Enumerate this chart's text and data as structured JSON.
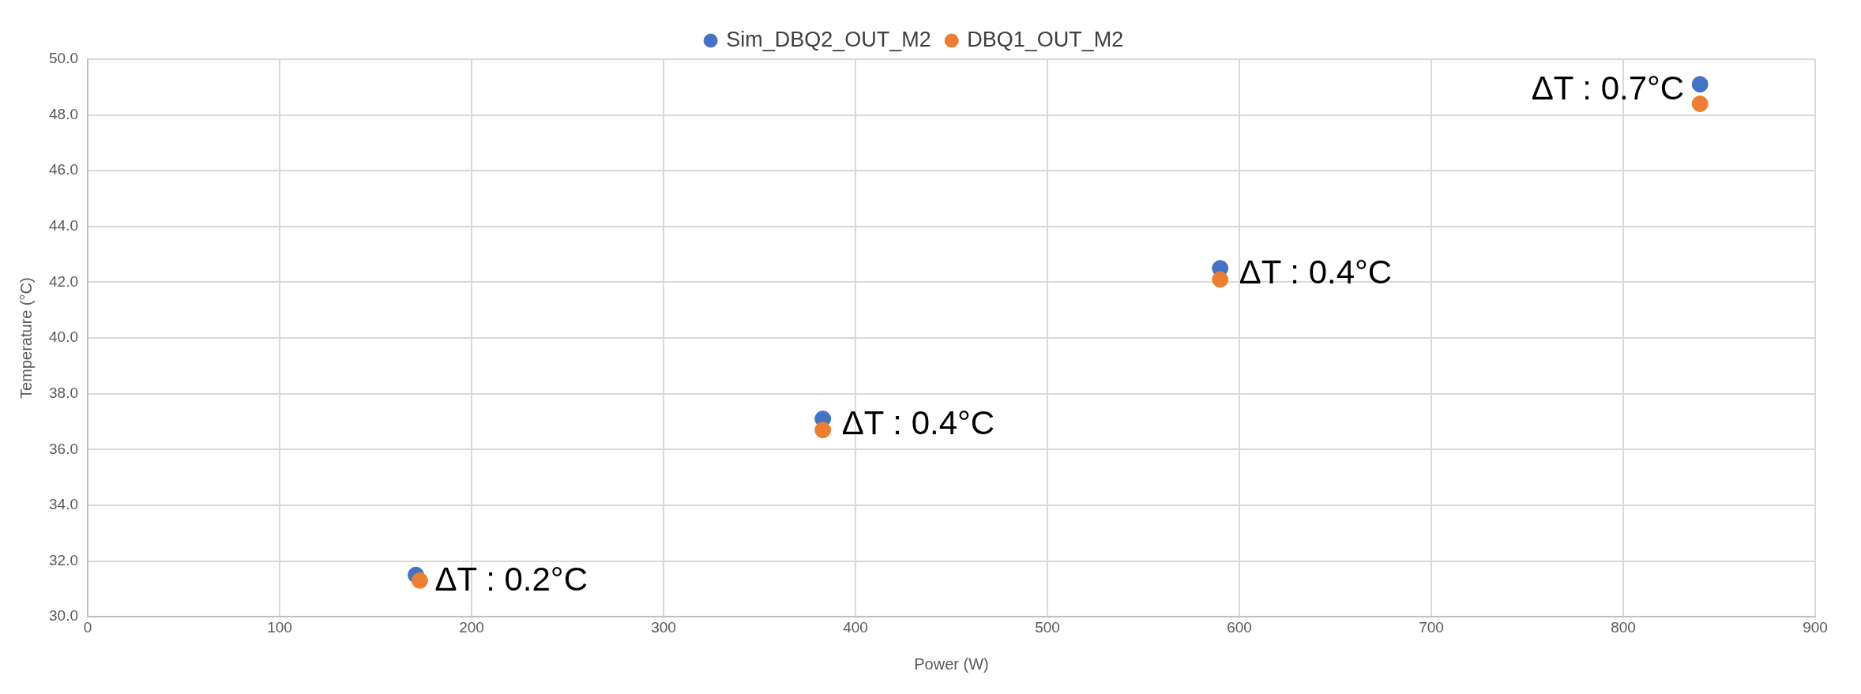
{
  "chart_data": {
    "type": "scatter",
    "xlabel": "Power (W)",
    "ylabel": "Temperature (°C)",
    "xlim": [
      0,
      900
    ],
    "xticks": [
      0,
      100,
      200,
      300,
      400,
      500,
      600,
      700,
      800,
      900
    ],
    "ylim": [
      30,
      50
    ],
    "yticks": [
      {
        "value": 30,
        "label": "30.0"
      },
      {
        "value": 32,
        "label": "32.0"
      },
      {
        "value": 34,
        "label": "34.0"
      },
      {
        "value": 36,
        "label": "36.0"
      },
      {
        "value": 38,
        "label": "38.0"
      },
      {
        "value": 40,
        "label": "40.0"
      },
      {
        "value": 42,
        "label": "42.0"
      },
      {
        "value": 44,
        "label": "44.0"
      },
      {
        "value": 46,
        "label": "46.0"
      },
      {
        "value": 48,
        "label": "48.0"
      },
      {
        "value": 50,
        "label": "50.0"
      }
    ],
    "x": [
      171,
      383,
      590,
      840
    ],
    "series": [
      {
        "name": "Sim_DBQ2_OUT_M2",
        "color": "#4472c4",
        "values": [
          31.5,
          37.1,
          42.5,
          49.1
        ]
      },
      {
        "name": "DBQ1_OUT_M2",
        "color": "#ed7d31",
        "x": [
          173,
          383,
          590,
          840
        ],
        "values": [
          31.3,
          36.7,
          42.1,
          48.4
        ]
      }
    ],
    "annotations": [
      {
        "text": "ΔT : 0.2°C",
        "x": 171,
        "y": 31.5
      },
      {
        "text": "ΔT : 0.4°C",
        "x": 383,
        "y": 37.1
      },
      {
        "text": "ΔT : 0.4°C",
        "x": 590,
        "y": 42.5
      },
      {
        "text": "ΔT : 0.7°C",
        "x": 840,
        "y": 49.1
      }
    ],
    "grid": true,
    "legend": "top",
    "marker": "circle"
  }
}
